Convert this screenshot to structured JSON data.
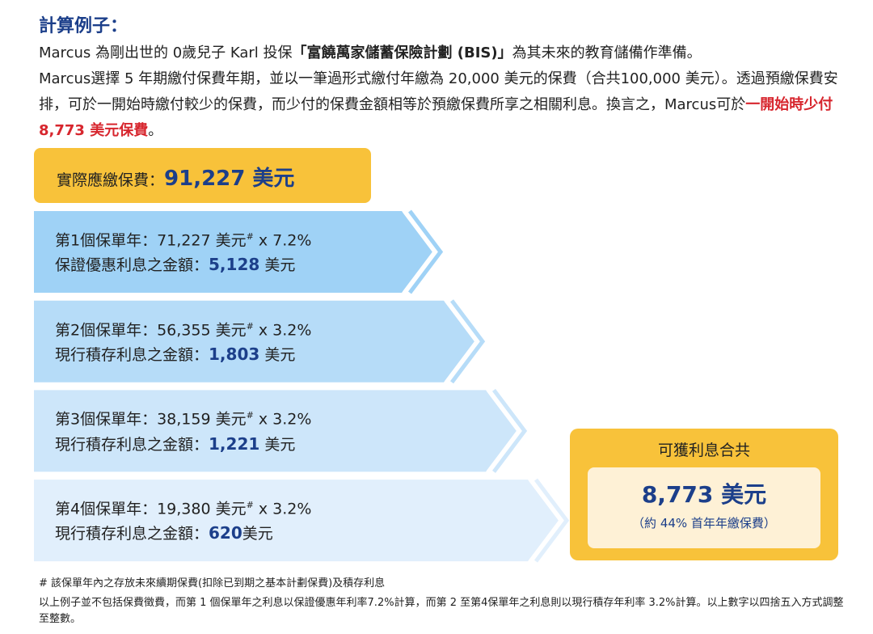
{
  "title": "計算例子：",
  "intro": [
    [
      {
        "text": "Marcus 為剛出世的 0歲兒子 Karl 投保",
        "style": "plain"
      },
      {
        "text": "「富饒萬家儲蓄保險計劃 (BIS)」",
        "style": "bold"
      },
      {
        "text": "為其未來的教育儲備作準備。",
        "style": "plain"
      }
    ],
    [
      {
        "text": "Marcus選擇 5 年期繳付保費年期，並以一筆過形式繳付年繳為 20,000 美元的保費（合共100,000 美元）。透過預繳保費安排，可於一開始時繳付較少的保費，而少付的保費金額相等於預繳保費所享之相關利息。換言之，Marcus可於",
        "style": "plain"
      },
      {
        "text": "一開始時少付 8,773 美元保費",
        "style": "red"
      },
      {
        "text": "。",
        "style": "plain"
      }
    ]
  ],
  "premium": {
    "label": "實際應繳保費：",
    "value": "91,227 美元"
  },
  "years": [
    {
      "heading": "第1個保單年：71,227 美元",
      "mark": "#",
      "rate": " x 7.2%",
      "label": "保證優惠利息之金額：",
      "amount": "5,128",
      "unit": " 美元",
      "color": "#9fd2f6"
    },
    {
      "heading": "第2個保單年：56,355 美元",
      "mark": "#",
      "rate": " x 3.2%",
      "label": "現行積存利息之金額：",
      "amount": "1,803",
      "unit": " 美元",
      "color": "#b6dcf8"
    },
    {
      "heading": "第3個保單年：38,159 美元",
      "mark": "#",
      "rate": " x 3.2%",
      "label": "現行積存利息之金額：",
      "amount": "1,221",
      "unit": " 美元",
      "color": "#cde6fa"
    },
    {
      "heading": "第4個保單年：19,380 美元",
      "mark": "#",
      "rate": " x 3.2%",
      "label": "現行積存利息之金額：",
      "amount": "620",
      "unit": "美元",
      "color": "#e1effc"
    }
  ],
  "total": {
    "title": "可獲利息合共",
    "amount": "8,773 美元",
    "note": "（約 44% 首年年繳保費）"
  },
  "footnotes": [
    "# 該保單年內之存放未來續期保費(扣除已到期之基本計劃保費)及積存利息",
    "以上例子並不包括保費徵費，而第 1 個保單年之利息以保證優惠年利率7.2%計算，而第 2 至第4保單年之利息則以現行積存年利率 3.2%計算。以上數字以四捨五入方式調整至整數。"
  ]
}
